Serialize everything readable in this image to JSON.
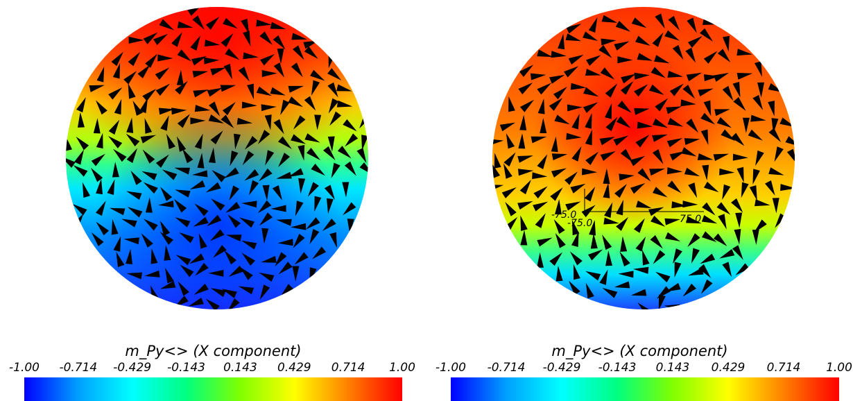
{
  "panels": [
    {
      "id": "left",
      "colorbar": {
        "title": "m_Py<> (X component)",
        "ticks": [
          "-1.00",
          "-0.714",
          "-0.429",
          "-0.143",
          "0.143",
          "0.429",
          "0.714",
          "1.00"
        ],
        "range": [
          -1.0,
          1.0
        ]
      }
    },
    {
      "id": "right",
      "axis_labels": [
        "-75.0",
        "-75.0",
        "75.0"
      ],
      "colorbar": {
        "title": "m_Py<> (X component)",
        "ticks": [
          "-1.00",
          "-0.714",
          "-0.429",
          "-0.143",
          "0.143",
          "0.429",
          "0.714",
          "1.00"
        ],
        "range": [
          -1.0,
          1.0
        ]
      }
    }
  ],
  "colormap": [
    "#0000ff",
    "#00a0ff",
    "#00ffff",
    "#00ff80",
    "#80ff00",
    "#ffff00",
    "#ff8000",
    "#ff0000"
  ]
}
